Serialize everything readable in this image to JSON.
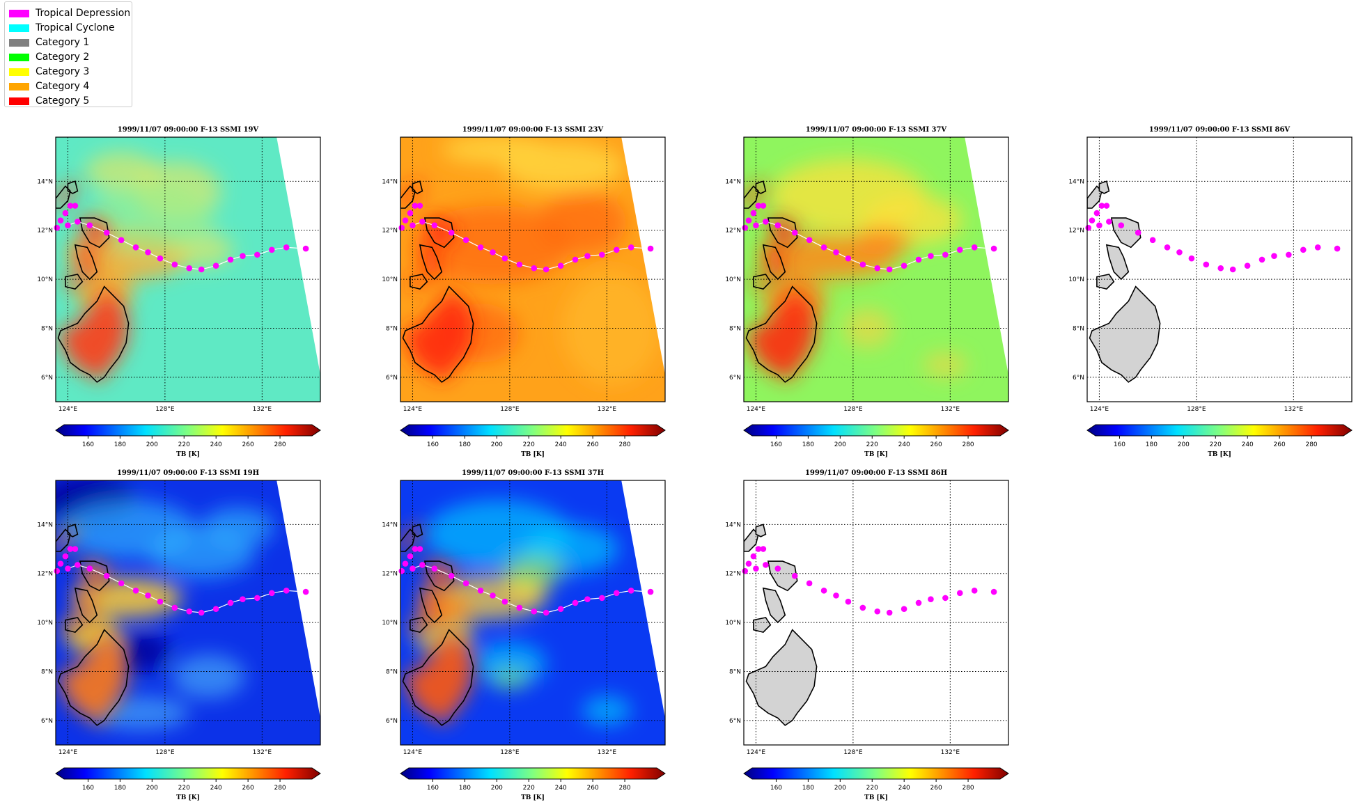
{
  "legend": {
    "items": [
      {
        "label": "Tropical Depression",
        "color": "#ff00ff"
      },
      {
        "label": "Tropical Cyclone",
        "color": "#00ffff"
      },
      {
        "label": "Category 1",
        "color": "#808080"
      },
      {
        "label": "Category 2",
        "color": "#00ff00"
      },
      {
        "label": "Category 3",
        "color": "#ffff00"
      },
      {
        "label": "Category 4",
        "color": "#ffa500"
      },
      {
        "label": "Category 5",
        "color": "#ff0000"
      }
    ]
  },
  "map": {
    "lon_ticks": [
      "124°E",
      "128°E",
      "132°E"
    ],
    "lat_ticks": [
      "14°N",
      "12°N",
      "10°N",
      "8°N",
      "6°N"
    ],
    "lon_range": [
      123.5,
      134.4
    ],
    "lat_range": [
      5.0,
      15.8
    ]
  },
  "colorbar": {
    "ticks": [
      "160",
      "180",
      "200",
      "220",
      "240",
      "260",
      "280"
    ],
    "min": 145,
    "max": 300,
    "label": "TB [K]"
  },
  "track": {
    "points": [
      {
        "lon": 123.55,
        "lat": 12.1
      },
      {
        "lon": 123.7,
        "lat": 12.4
      },
      {
        "lon": 123.9,
        "lat": 12.7
      },
      {
        "lon": 124.1,
        "lat": 13.0
      },
      {
        "lon": 124.3,
        "lat": 13.0
      },
      {
        "lon": 124.0,
        "lat": 12.2
      },
      {
        "lon": 124.4,
        "lat": 12.35
      },
      {
        "lon": 124.9,
        "lat": 12.2
      },
      {
        "lon": 125.6,
        "lat": 11.9
      },
      {
        "lon": 126.2,
        "lat": 11.6
      },
      {
        "lon": 126.8,
        "lat": 11.3
      },
      {
        "lon": 127.3,
        "lat": 11.1
      },
      {
        "lon": 127.8,
        "lat": 10.85
      },
      {
        "lon": 128.4,
        "lat": 10.6
      },
      {
        "lon": 129.0,
        "lat": 10.45
      },
      {
        "lon": 129.5,
        "lat": 10.4
      },
      {
        "lon": 130.1,
        "lat": 10.55
      },
      {
        "lon": 130.7,
        "lat": 10.8
      },
      {
        "lon": 131.2,
        "lat": 10.95
      },
      {
        "lon": 131.8,
        "lat": 11.0
      },
      {
        "lon": 132.4,
        "lat": 11.2
      },
      {
        "lon": 133.0,
        "lat": 11.3
      },
      {
        "lon": 133.8,
        "lat": 11.25
      }
    ],
    "color": "#ff00ff"
  },
  "panels": [
    {
      "title": "1999/11/07 09:00:00  F-13 SSMI 19V",
      "kind": "v19"
    },
    {
      "title": "1999/11/07 09:00:00  F-13 SSMI 23V",
      "kind": "v23"
    },
    {
      "title": "1999/11/07 09:00:00  F-13 SSMI 37V",
      "kind": "v37"
    },
    {
      "title": "1999/11/07 09:00:00  F-13 SSMI 86V",
      "kind": "empty"
    },
    {
      "title": "1999/11/07 09:00:00  F-13 SSMI 19H",
      "kind": "h19"
    },
    {
      "title": "1999/11/07 09:00:00  F-13 SSMI 37H",
      "kind": "h37"
    },
    {
      "title": "1999/11/07 09:00:00  F-13 SSMI 86H",
      "kind": "empty"
    }
  ]
}
